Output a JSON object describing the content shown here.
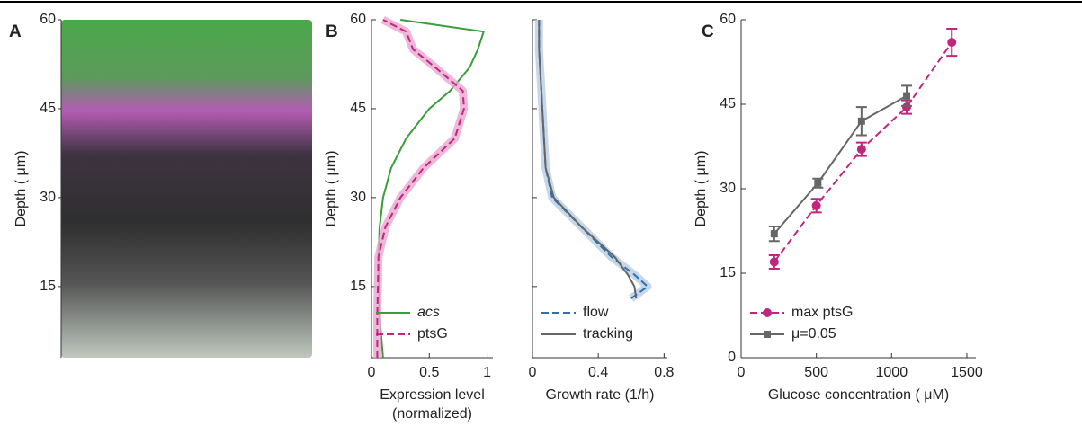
{
  "chart_data": [
    {
      "type": "image",
      "label": "A",
      "ylabel": "Depth ( μm)",
      "ylim": [
        3,
        60
      ],
      "yticks": [
        15,
        30,
        45,
        60
      ]
    },
    {
      "type": "profile",
      "label": "B",
      "xlabel": [
        "Expression level",
        "(normalized)"
      ],
      "ylabel": "Depth ( μm)",
      "xlim": [
        0,
        1.05
      ],
      "xticks": [
        0,
        0.5,
        1
      ],
      "ylim": [
        3,
        60
      ],
      "yticks": [
        15,
        30,
        45,
        60
      ],
      "show_ytick_labels": true,
      "legend": "lower right",
      "y": [
        3,
        10,
        20,
        25,
        30,
        35,
        40,
        45,
        48,
        52,
        55,
        58,
        60
      ],
      "series": [
        {
          "name": "acs",
          "color": "#3a9c3a",
          "dash": false,
          "values": [
            0.1,
            0.07,
            0.06,
            0.07,
            0.1,
            0.17,
            0.3,
            0.5,
            0.68,
            0.85,
            0.92,
            0.97,
            0.25
          ]
        },
        {
          "name": "ptsG",
          "color": "#c2257e",
          "dash": true,
          "band": "#e9a6cf",
          "values": [
            0.05,
            0.05,
            0.06,
            0.12,
            0.25,
            0.45,
            0.72,
            0.8,
            0.79,
            0.55,
            0.36,
            0.3,
            0.1
          ]
        }
      ]
    },
    {
      "type": "profile",
      "xlabel": [
        "Growth rate (1/h)"
      ],
      "xlim": [
        0,
        0.82
      ],
      "xticks": [
        0,
        0.4,
        0.8
      ],
      "ylim": [
        3,
        60
      ],
      "yticks": [
        15,
        30,
        45,
        60
      ],
      "show_ytick_labels": false,
      "legend": "lower left",
      "y": [
        13,
        15,
        17,
        20,
        25,
        30,
        35,
        40,
        45,
        50,
        55,
        60
      ],
      "series": [
        {
          "name": "flow",
          "color": "#2f6fb0",
          "dash": true,
          "band": "#b7cde4",
          "values": [
            0.6,
            0.7,
            0.62,
            0.48,
            0.3,
            0.12,
            0.08,
            0.07,
            0.06,
            0.05,
            0.04,
            0.04
          ]
        },
        {
          "name": "tracking",
          "color": "#666666",
          "dash": false,
          "values": [
            0.63,
            0.62,
            0.58,
            0.5,
            0.3,
            0.13,
            0.08,
            0.07,
            0.06,
            0.05,
            0.04,
            0.04
          ]
        }
      ]
    },
    {
      "type": "errorline",
      "label": "C",
      "xlabel": [
        "Glucose concentration ( μM)"
      ],
      "ylabel": "Depth ( μm)",
      "xlim": [
        0,
        1560
      ],
      "xticks": [
        0,
        500,
        1000,
        1500
      ],
      "ylim": [
        0,
        60
      ],
      "yticks": [
        0,
        15,
        30,
        45,
        60
      ],
      "show_ytick_labels": true,
      "legend": "lower left",
      "series": [
        {
          "name": "max ptsG",
          "color": "#c2257e",
          "dash": true,
          "marker": "circle",
          "x": [
            220,
            500,
            800,
            1100,
            1400
          ],
          "values": [
            17,
            27,
            37,
            44.5,
            56
          ],
          "errors": [
            1.2,
            1.2,
            1.2,
            1.2,
            2.4
          ]
        },
        {
          "name": "μ=0.05",
          "color": "#666666",
          "dash": false,
          "marker": "square",
          "x": [
            220,
            510,
            800,
            1100
          ],
          "values": [
            22,
            31,
            42,
            46.5
          ],
          "errors": [
            1.3,
            0.8,
            2.5,
            1.8
          ]
        }
      ]
    }
  ]
}
